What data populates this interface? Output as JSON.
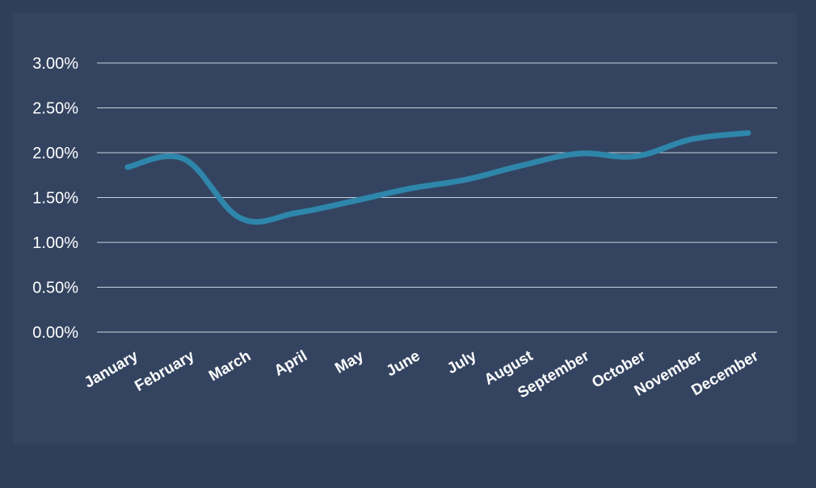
{
  "chart_data": {
    "type": "line",
    "title": "",
    "xlabel": "",
    "ylabel": "",
    "categories": [
      "January",
      "February",
      "March",
      "April",
      "May",
      "June",
      "July",
      "August",
      "September",
      "October",
      "November",
      "December"
    ],
    "series": [
      {
        "values": [
          1.84,
          1.93,
          1.27,
          1.33,
          1.46,
          1.6,
          1.7,
          1.86,
          1.99,
          1.96,
          2.15,
          2.22
        ]
      }
    ],
    "ylim": [
      0,
      3.0
    ],
    "yticks": [
      "0.00%",
      "0.50%",
      "1.00%",
      "1.50%",
      "2.00%",
      "2.50%",
      "3.00%"
    ],
    "grid": true,
    "legend": "none",
    "colors": {
      "background": "#2f3f5b",
      "panel": "#344460",
      "line": "#2e86ab",
      "grid": "#c9d2e0",
      "text": "#ffffff"
    }
  }
}
